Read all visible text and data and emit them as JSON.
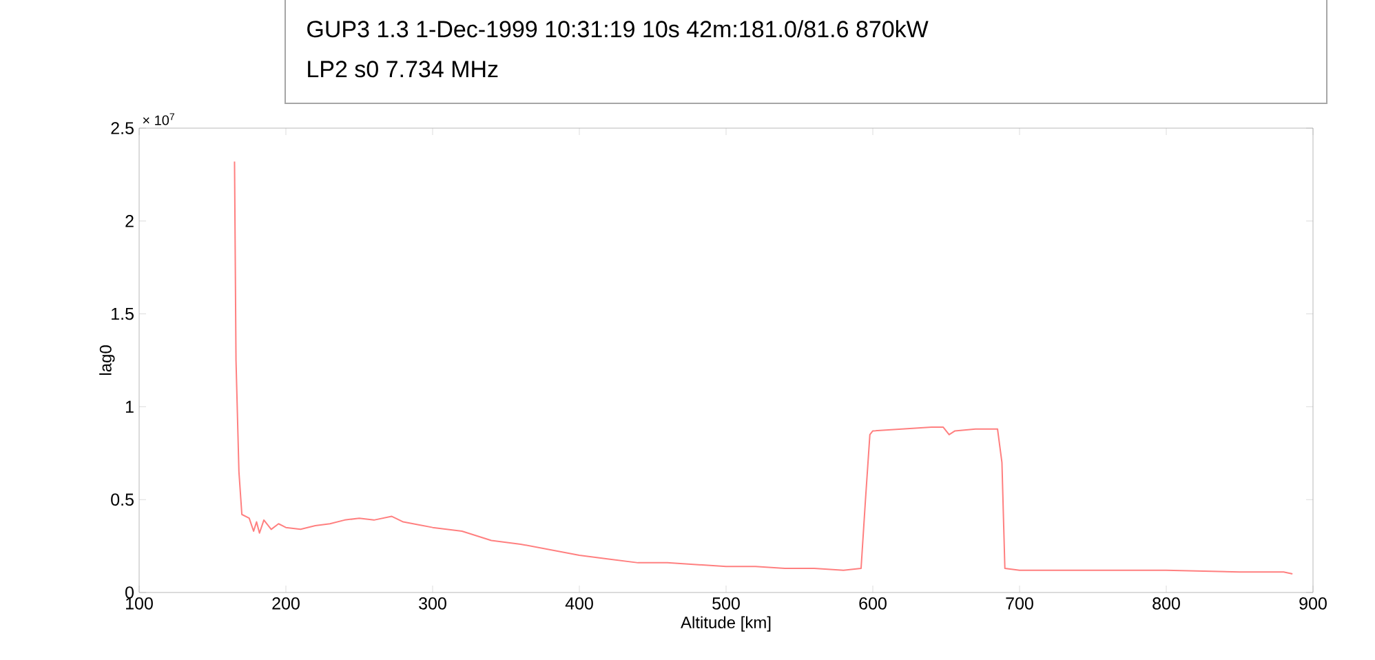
{
  "chart_data": {
    "type": "line",
    "title": "GUP3 1.3   1-Dec-1999 10:31:19 10s  42m:181.0/81.6  870kW",
    "subtitle": "LP2 s0  7.734 MHz",
    "xlabel": "Altitude [km]",
    "ylabel": "lag0",
    "annotations": [
      "× 10$^{7}$"
    ],
    "series": [
      {
        "color": "#ff7f7f",
        "x": [
          165,
          166,
          168,
          170,
          175,
          178,
          180,
          182,
          185,
          190,
          195,
          200,
          210,
          220,
          230,
          240,
          250,
          260,
          272,
          280,
          300,
          320,
          340,
          360,
          380,
          400,
          420,
          440,
          460,
          480,
          500,
          520,
          540,
          560,
          580,
          592,
          595,
          598,
          600,
          620,
          640,
          648,
          652,
          656,
          670,
          685,
          688,
          690,
          700,
          750,
          800,
          850,
          880,
          886
        ],
        "values": [
          2.32,
          1.25,
          0.65,
          0.42,
          0.4,
          0.33,
          0.38,
          0.32,
          0.39,
          0.34,
          0.37,
          0.35,
          0.34,
          0.36,
          0.37,
          0.39,
          0.4,
          0.39,
          0.41,
          0.38,
          0.35,
          0.33,
          0.28,
          0.26,
          0.23,
          0.2,
          0.18,
          0.16,
          0.16,
          0.15,
          0.14,
          0.14,
          0.13,
          0.13,
          0.12,
          0.13,
          0.5,
          0.85,
          0.87,
          0.88,
          0.89,
          0.89,
          0.85,
          0.87,
          0.88,
          0.88,
          0.7,
          0.13,
          0.12,
          0.12,
          0.12,
          0.11,
          0.11,
          0.1
        ]
      }
    ],
    "xlim": [
      100,
      900
    ],
    "xticks": [
      100,
      200,
      300,
      400,
      500,
      600,
      700,
      800,
      900
    ],
    "ylim": [
      0,
      2.5
    ],
    "yticks": [
      0,
      0.5,
      1,
      1.5,
      2,
      2.5
    ],
    "grid": false,
    "marker": "none",
    "line_style": "solid"
  }
}
